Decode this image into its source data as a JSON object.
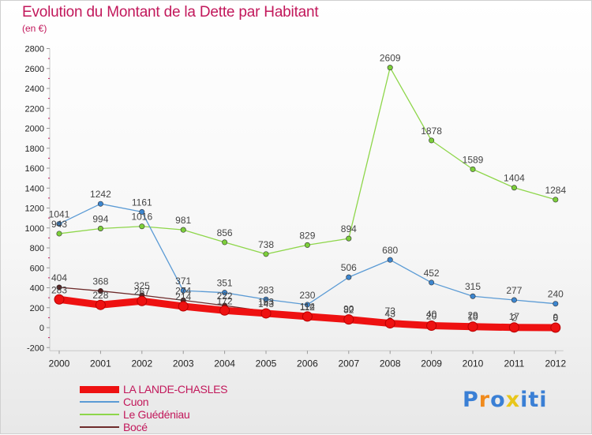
{
  "chart_data": {
    "type": "line",
    "title": "Evolution du Montant de la Dette par Habitant",
    "subtitle": "(en €)",
    "x": [
      "2000",
      "2001",
      "2002",
      "2003",
      "2004",
      "2005",
      "2006",
      "2007",
      "2008",
      "2009",
      "2010",
      "2011",
      "2012"
    ],
    "ylim": [
      -200,
      2800
    ],
    "yticks": [
      -200,
      0,
      200,
      400,
      600,
      800,
      1000,
      1200,
      1400,
      1600,
      1800,
      2000,
      2200,
      2400,
      2600,
      2800
    ],
    "grid": false,
    "legend_position": "bottom-left",
    "series": [
      {
        "name": "Bocé",
        "color": "#6e2b2b",
        "marker": "#5a1e1e",
        "values": [
          404,
          368,
          325,
          274,
          222,
          163,
          114,
          90,
          73,
          40,
          29,
          17,
          9
        ]
      },
      {
        "name": "Le Guédéniau",
        "color": "#8ed64a",
        "marker": "#7ccf3a",
        "values": [
          943,
          994,
          1016,
          981,
          856,
          738,
          829,
          894,
          2609,
          1878,
          1589,
          1404,
          1284
        ]
      },
      {
        "name": "Cuon",
        "color": "#5b9bd5",
        "marker": "#3d86cf",
        "values": [
          1041,
          1242,
          1161,
          371,
          351,
          283,
          230,
          506,
          680,
          452,
          315,
          277,
          240
        ]
      },
      {
        "name": "LA LANDE-CHASLES",
        "color": "#ee1111",
        "marker": "#ee1111",
        "values": [
          283,
          228,
          267,
          214,
          172,
          143,
          112,
          82,
          43,
          20,
          10,
          2,
          0
        ]
      }
    ]
  },
  "legend": [
    {
      "label": "LA LANDE-CHASLES",
      "color": "#ee1111",
      "text_color": "#c2185b"
    },
    {
      "label": "Cuon",
      "color": "#5b9bd5",
      "text_color": "#c2185b"
    },
    {
      "label": "Le Guédéniau",
      "color": "#8ed64a",
      "text_color": "#c2185b"
    },
    {
      "label": "Bocé",
      "color": "#6e2b2b",
      "text_color": "#c2185b"
    }
  ],
  "logo": {
    "text": "Proxiti",
    "letters": [
      "P",
      "r",
      "o",
      "x",
      "i",
      "t",
      "i"
    ],
    "colors": [
      "#3a7fd5",
      "#f08a1c",
      "#3a7fd5",
      "#e8c61a",
      "#3a7fd5",
      "#3a7fd5",
      "#3a7fd5"
    ]
  }
}
